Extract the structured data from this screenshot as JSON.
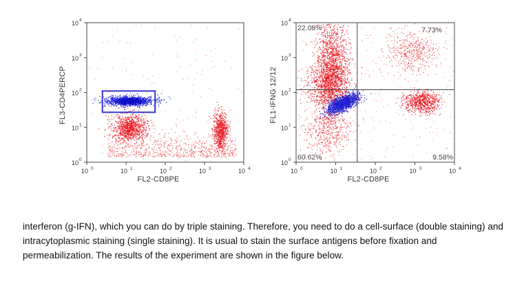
{
  "chart_data": [
    {
      "type": "scatter",
      "xlabel": "FL2-CD8PE",
      "ylabel": "FL3-CD4PERCP",
      "x_scale": "log",
      "y_scale": "log",
      "xlim": [
        1,
        10000
      ],
      "ylim": [
        1,
        10000
      ],
      "x_ticks": [
        "10^0",
        "10^1",
        "10^2",
        "10^3",
        "10^4"
      ],
      "y_ticks": [
        "10^0",
        "10^1",
        "10^2",
        "10^3",
        "10^4"
      ],
      "gate": {
        "shape": "rectangle",
        "x_range": [
          2.5,
          55
        ],
        "y_range": [
          27,
          110
        ],
        "color": "#3333cc"
      },
      "populations": [
        {
          "color": "blue",
          "center": [
            12,
            58
          ]
        },
        {
          "color": "red",
          "center": [
            12,
            10
          ]
        },
        {
          "color": "red",
          "center": [
            2500,
            8
          ]
        }
      ]
    },
    {
      "type": "scatter",
      "xlabel": "FL2-CD8PE",
      "ylabel": "FL1-IFNG 12/12",
      "x_scale": "log",
      "y_scale": "log",
      "xlim": [
        1,
        10000
      ],
      "ylim": [
        1,
        10000
      ],
      "x_ticks": [
        "10^0",
        "10^1",
        "10^2",
        "10^3",
        "10^4"
      ],
      "y_ticks": [
        "10^0",
        "10^1",
        "10^2",
        "10^3",
        "10^4"
      ],
      "quadrant_divider": {
        "x": 35,
        "y": 120
      },
      "quadrants": {
        "upper_left": "22.08%",
        "upper_right": "7.73%",
        "lower_left": "60.62%",
        "lower_right": "9.58%"
      },
      "populations": [
        {
          "color": "blue",
          "center": [
            15,
            50
          ]
        },
        {
          "color": "red",
          "center": [
            6,
            150
          ]
        },
        {
          "color": "red",
          "center": [
            1500,
            55
          ]
        },
        {
          "color": "red",
          "center": [
            800,
            1500
          ]
        }
      ]
    }
  ],
  "caption": "interferon (g-IFN), which you can do by triple staining. Therefore, you need to do a cell-surface (double staining) and intracytoplasmic staining (single staining). It is usual to stain the surface antigens before fixation and permeabilization. The results of the experiment are shown in the figure below.",
  "colors": {
    "events_primary": "#e8101a",
    "events_gated": "#2a2ae0",
    "gate": "#3333cc",
    "axis": "#444444"
  }
}
